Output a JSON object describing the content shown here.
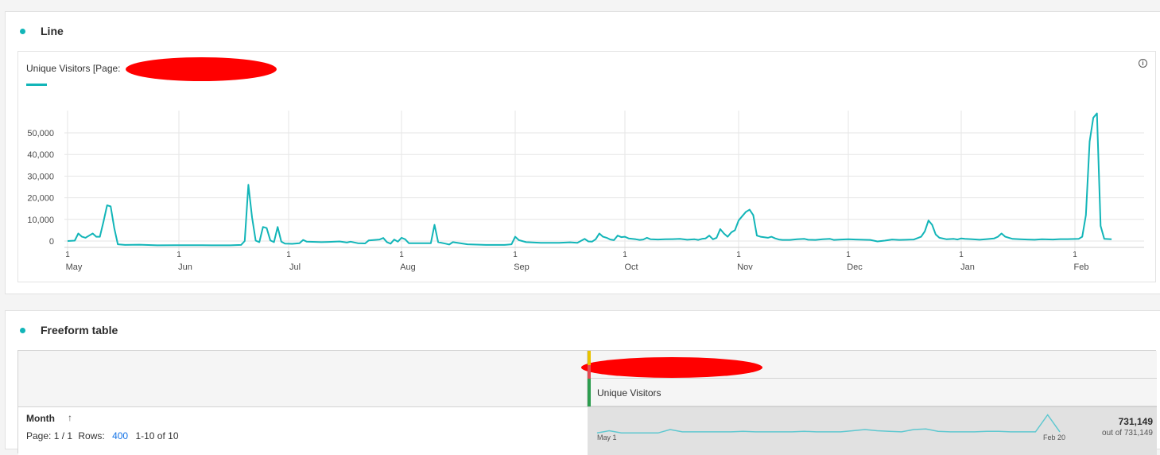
{
  "line_panel": {
    "title": "Line",
    "series_label": "Unique Visitors [Page:",
    "info_icon": "info-icon",
    "accent_color": "#12b5b8",
    "redaction_color": "#ff0000"
  },
  "chart_data": {
    "type": "line",
    "title": "",
    "xlabel": "",
    "ylabel": "",
    "ylim": [
      0,
      60000
    ],
    "y_ticks": [
      "0",
      "10,000",
      "20,000",
      "30,000",
      "40,000",
      "50,000"
    ],
    "y_tick_values": [
      0,
      10000,
      20000,
      30000,
      40000,
      50000
    ],
    "x_ticks": [
      {
        "day": "1",
        "month": "May"
      },
      {
        "day": "1",
        "month": "Jun"
      },
      {
        "day": "1",
        "month": "Jul"
      },
      {
        "day": "1",
        "month": "Aug"
      },
      {
        "day": "1",
        "month": "Sep"
      },
      {
        "day": "1",
        "month": "Oct"
      },
      {
        "day": "1",
        "month": "Nov"
      },
      {
        "day": "1",
        "month": "Dec"
      },
      {
        "day": "1",
        "month": "Jan"
      },
      {
        "day": "1",
        "month": "Feb"
      }
    ],
    "x_range_days": [
      0,
      294
    ],
    "grid": true,
    "legend": "top-left",
    "series": [
      {
        "color": "#12b5b8",
        "points": [
          [
            0,
            0
          ],
          [
            2,
            200
          ],
          [
            3,
            3500
          ],
          [
            4,
            2000
          ],
          [
            5,
            1500
          ],
          [
            6,
            2500
          ],
          [
            7,
            3500
          ],
          [
            8,
            2000
          ],
          [
            9,
            2000
          ],
          [
            10,
            9000
          ],
          [
            11,
            16500
          ],
          [
            12,
            16000
          ],
          [
            13,
            6000
          ],
          [
            14,
            -1500
          ],
          [
            16,
            -1800
          ],
          [
            20,
            -1700
          ],
          [
            25,
            -2000
          ],
          [
            30,
            -1900
          ],
          [
            35,
            -1900
          ],
          [
            40,
            -2000
          ],
          [
            45,
            -2000
          ],
          [
            48,
            -1800
          ],
          [
            49,
            0
          ],
          [
            50,
            26000
          ],
          [
            51,
            11000
          ],
          [
            52,
            200
          ],
          [
            53,
            -500
          ],
          [
            54,
            6500
          ],
          [
            55,
            6000
          ],
          [
            56,
            300
          ],
          [
            57,
            -500
          ],
          [
            58,
            6500
          ],
          [
            59,
            -300
          ],
          [
            60,
            -1200
          ],
          [
            62,
            -1300
          ],
          [
            64,
            -1000
          ],
          [
            65,
            500
          ],
          [
            66,
            -300
          ],
          [
            70,
            -500
          ],
          [
            72,
            -400
          ],
          [
            75,
            -200
          ],
          [
            77,
            -700
          ],
          [
            78,
            -300
          ],
          [
            80,
            -1000
          ],
          [
            82,
            -1100
          ],
          [
            83,
            300
          ],
          [
            86,
            700
          ],
          [
            87,
            1400
          ],
          [
            88,
            -500
          ],
          [
            89,
            -1200
          ],
          [
            90,
            700
          ],
          [
            91,
            -300
          ],
          [
            92,
            1500
          ],
          [
            93,
            800
          ],
          [
            94,
            -1000
          ],
          [
            100,
            -1000
          ],
          [
            101,
            7500
          ],
          [
            102,
            -500
          ],
          [
            104,
            -1200
          ],
          [
            105,
            -1600
          ],
          [
            106,
            -500
          ],
          [
            108,
            -1000
          ],
          [
            110,
            -1500
          ],
          [
            115,
            -1800
          ],
          [
            120,
            -1800
          ],
          [
            122,
            -1500
          ],
          [
            123,
            2000
          ],
          [
            124,
            400
          ],
          [
            126,
            -500
          ],
          [
            130,
            -800
          ],
          [
            135,
            -800
          ],
          [
            138,
            -600
          ],
          [
            140,
            -800
          ],
          [
            142,
            1000
          ],
          [
            143,
            -200
          ],
          [
            144,
            -300
          ],
          [
            145,
            800
          ],
          [
            146,
            3500
          ],
          [
            147,
            2000
          ],
          [
            148,
            1500
          ],
          [
            149,
            700
          ],
          [
            150,
            400
          ],
          [
            151,
            2500
          ],
          [
            152,
            1800
          ],
          [
            153,
            2000
          ],
          [
            154,
            1200
          ],
          [
            155,
            1000
          ],
          [
            156,
            800
          ],
          [
            157,
            500
          ],
          [
            158,
            700
          ],
          [
            159,
            1500
          ],
          [
            160,
            800
          ],
          [
            162,
            700
          ],
          [
            164,
            800
          ],
          [
            166,
            900
          ],
          [
            168,
            1000
          ],
          [
            170,
            600
          ],
          [
            172,
            800
          ],
          [
            173,
            500
          ],
          [
            174,
            1000
          ],
          [
            175,
            1200
          ],
          [
            176,
            2500
          ],
          [
            177,
            800
          ],
          [
            178,
            1500
          ],
          [
            179,
            5500
          ],
          [
            180,
            3500
          ],
          [
            181,
            2000
          ],
          [
            182,
            4000
          ],
          [
            183,
            5000
          ],
          [
            184,
            9500
          ],
          [
            185,
            11500
          ],
          [
            186,
            13500
          ],
          [
            187,
            14500
          ],
          [
            188,
            12000
          ],
          [
            189,
            2500
          ],
          [
            190,
            2000
          ],
          [
            192,
            1500
          ],
          [
            193,
            2000
          ],
          [
            194,
            1200
          ],
          [
            195,
            700
          ],
          [
            196,
            500
          ],
          [
            198,
            500
          ],
          [
            200,
            800
          ],
          [
            202,
            1000
          ],
          [
            203,
            600
          ],
          [
            205,
            500
          ],
          [
            207,
            800
          ],
          [
            209,
            1000
          ],
          [
            210,
            500
          ],
          [
            212,
            700
          ],
          [
            214,
            800
          ],
          [
            216,
            700
          ],
          [
            218,
            600
          ],
          [
            220,
            500
          ],
          [
            222,
            -200
          ],
          [
            224,
            200
          ],
          [
            226,
            700
          ],
          [
            228,
            500
          ],
          [
            230,
            600
          ],
          [
            232,
            700
          ],
          [
            234,
            2000
          ],
          [
            235,
            4500
          ],
          [
            236,
            9500
          ],
          [
            237,
            7500
          ],
          [
            238,
            3000
          ],
          [
            239,
            1500
          ],
          [
            241,
            800
          ],
          [
            243,
            1000
          ],
          [
            244,
            700
          ],
          [
            245,
            1200
          ],
          [
            246,
            1000
          ],
          [
            248,
            800
          ],
          [
            250,
            600
          ],
          [
            252,
            900
          ],
          [
            254,
            1200
          ],
          [
            255,
            2000
          ],
          [
            256,
            3500
          ],
          [
            257,
            2000
          ],
          [
            259,
            1000
          ],
          [
            261,
            800
          ],
          [
            263,
            700
          ],
          [
            265,
            600
          ],
          [
            267,
            800
          ],
          [
            270,
            700
          ],
          [
            272,
            900
          ],
          [
            274,
            900
          ],
          [
            277,
            1000
          ],
          [
            278,
            2000
          ],
          [
            279,
            12000
          ],
          [
            280,
            46000
          ],
          [
            281,
            57000
          ],
          [
            282,
            59000
          ],
          [
            283,
            7000
          ],
          [
            284,
            1000
          ],
          [
            286,
            800
          ]
        ]
      }
    ]
  },
  "table_panel": {
    "title": "Freeform table",
    "metric_name": "Unique Visitors",
    "dimension_name": "Month",
    "sort_icon": "arrow-up-icon",
    "page_label": "Page: 1 / 1",
    "rows_label": "Rows:",
    "rows_value": "400",
    "range_label": "1-10 of 10",
    "spark_start": "May 1",
    "spark_end": "Feb 20",
    "total": "731,149",
    "total_of": "out of 731,149",
    "segment_colors": [
      "#e8c300",
      "#e34850",
      "#2d9d4f"
    ],
    "sparkline": [
      8,
      12,
      8,
      8,
      8,
      8,
      14,
      10,
      10,
      10,
      10,
      10,
      11,
      10,
      10,
      10,
      10,
      11,
      10,
      10,
      10,
      12,
      14,
      12,
      11,
      10,
      14,
      15,
      11,
      10,
      10,
      10,
      11,
      11,
      10,
      10,
      10,
      40,
      10
    ]
  }
}
